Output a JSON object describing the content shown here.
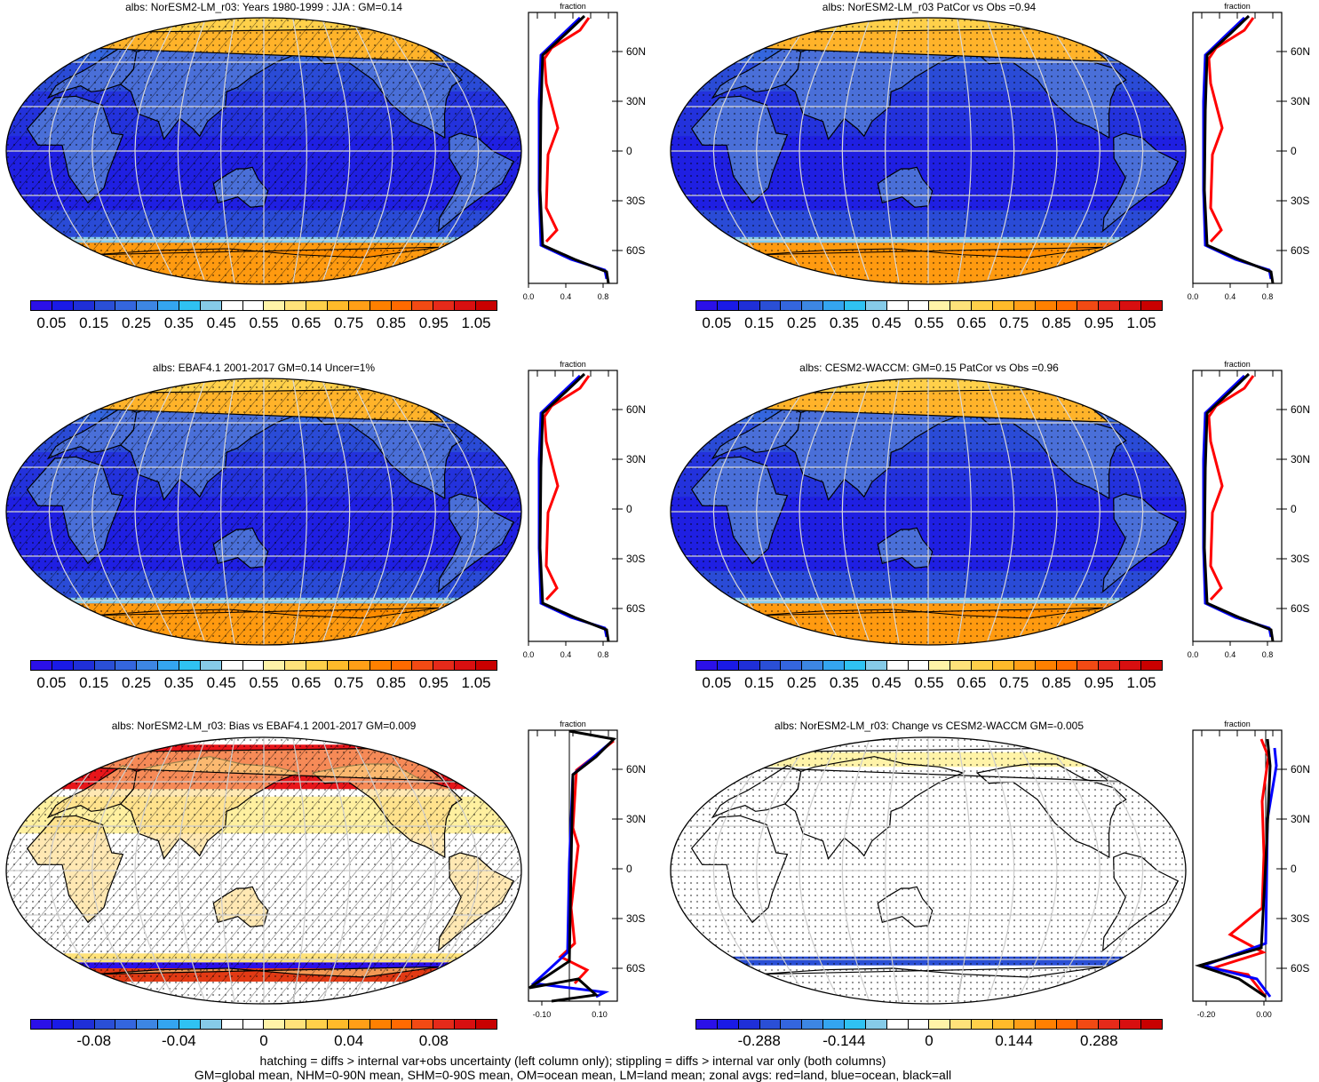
{
  "panels": [
    {
      "title": "albs: NorESM2-LM_r03: Years 1980-1999 : JJA : GM=0.14",
      "kind": "abs",
      "hatch": true
    },
    {
      "title": "albs: NorESM2-LM_r03 PatCor vs Obs =0.94",
      "kind": "abs",
      "hatch": false
    },
    {
      "title": "albs: EBAF4.1 2001-2017 GM=0.14 Uncer=1%",
      "kind": "abs",
      "hatch": true
    },
    {
      "title": "albs: CESM2-WACCM: GM=0.15 PatCor vs Obs =0.96",
      "kind": "abs",
      "hatch": false
    },
    {
      "title": "albs: NorESM2-LM_r03: Bias vs EBAF4.1 2001-2017 GM=0.009",
      "kind": "diff",
      "hatch": true
    },
    {
      "title": "albs: NorESM2-LM_r03: Change vs CESM2-WACCM GM=-0.005",
      "kind": "diff",
      "hatch": false
    }
  ],
  "zonal": {
    "axis_title": "fraction",
    "lat_labels": [
      "60N",
      "30N",
      "0",
      "30S",
      "60S"
    ],
    "x_labels_abs": [
      "0.0",
      "0.4",
      "0.8"
    ],
    "x_labels_bias": [
      "-0.10",
      "0.10"
    ],
    "x_labels_change": [
      "-0.20",
      "0.00"
    ]
  },
  "colorbars": {
    "abs_labels": [
      "0.05",
      "0.15",
      "0.25",
      "0.35",
      "0.45",
      "0.55",
      "0.65",
      "0.75",
      "0.85",
      "0.95",
      "1.05"
    ],
    "bias_labels": [
      "-0.08",
      "-0.04",
      "0",
      "0.04",
      "0.08"
    ],
    "change_labels": [
      "-0.288",
      "-0.144",
      "0",
      "0.144",
      "0.288"
    ],
    "abs_colors": [
      "#2b10e8",
      "#1a1ae6",
      "#1f2fd8",
      "#2a4fd6",
      "#3466de",
      "#3d86e3",
      "#34a5f0",
      "#2fc2f2",
      "#86cbe8",
      "#ffffff",
      "#ffffff",
      "#fff3a8",
      "#ffe27a",
      "#ffd04a",
      "#ffba2a",
      "#ff9f17",
      "#ff8000",
      "#ff6a00",
      "#f24a14",
      "#e52a1a",
      "#d80f10",
      "#c90000"
    ],
    "diff_colors": [
      "#2b10e8",
      "#1a1ae6",
      "#1f2fd8",
      "#2a4fd6",
      "#3466de",
      "#3d86e3",
      "#34a5f0",
      "#2fc2f2",
      "#86cbe8",
      "#ffffff",
      "#ffffff",
      "#fff3a8",
      "#ffe27a",
      "#ffd04a",
      "#ffba2a",
      "#ff9f17",
      "#ff8000",
      "#ff6a00",
      "#f24a14",
      "#e52a1a",
      "#d80f10",
      "#c90000"
    ]
  },
  "footer": {
    "line1": "hatching = diffs > internal var+obs uncertainty (left column only); stippling = diffs > internal var only (both columns)",
    "line2": "GM=global mean, NHM=0-90N mean, SHM=0-90S mean, OM=ocean mean, LM=land mean; zonal avgs: red=land, blue=ocean, black=all"
  },
  "legend_colors": {
    "land": "#ff0000",
    "ocean": "#0000ff",
    "all": "#000000"
  }
}
